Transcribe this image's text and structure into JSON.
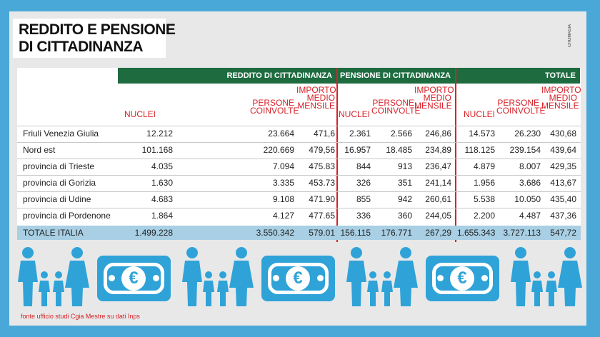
{
  "title": "REDDITO E PENSIONE\nDI CITTADINANZA",
  "credit": "CROMASIA",
  "groups": {
    "reddito": "REDDITO DI CITTADINANZA",
    "pensione": "PENSIONE DI CITTADINANZA",
    "totale": "TOTALE"
  },
  "headers": {
    "nuclei": "NUCLEI",
    "persone": "PERSONE\nCOINVOLTE",
    "importo": "IMPORTO\nMEDIO\nMENSILE"
  },
  "rows": [
    {
      "name": "Friuli Venezia Giulia",
      "r_nuclei": "12.212",
      "r_persone": "23.664",
      "r_importo": "471,6",
      "p_nuclei": "2.361",
      "p_persone": "2.566",
      "p_importo": "246,86",
      "t_nuclei": "14.573",
      "t_persone": "26.230",
      "t_importo": "430,68"
    },
    {
      "name": "Nord est",
      "r_nuclei": "101.168",
      "r_persone": "220.669",
      "r_importo": "479,56",
      "p_nuclei": "16.957",
      "p_persone": "18.485",
      "p_importo": "234,89",
      "t_nuclei": "118.125",
      "t_persone": "239.154",
      "t_importo": "439,64"
    },
    {
      "name": "provincia di Trieste",
      "r_nuclei": "4.035",
      "r_persone": "7.094",
      "r_importo": "475.83",
      "p_nuclei": "844",
      "p_persone": "913",
      "p_importo": "236,47",
      "t_nuclei": "4.879",
      "t_persone": "8.007",
      "t_importo": "429,35"
    },
    {
      "name": "provincia di Gorizia",
      "r_nuclei": "1.630",
      "r_persone": "3.335",
      "r_importo": "453.73",
      "p_nuclei": "326",
      "p_persone": "351",
      "p_importo": "241,14",
      "t_nuclei": "1.956",
      "t_persone": "3.686",
      "t_importo": "413,67"
    },
    {
      "name": "provincia di Udine",
      "r_nuclei": "4.683",
      "r_persone": "9.108",
      "r_importo": "471.90",
      "p_nuclei": "855",
      "p_persone": "942",
      "p_importo": "260,61",
      "t_nuclei": "5.538",
      "t_persone": "10.050",
      "t_importo": "435,40"
    },
    {
      "name": "provincia di Pordenone",
      "r_nuclei": "1.864",
      "r_persone": "4.127",
      "r_importo": "477.65",
      "p_nuclei": "336",
      "p_persone": "360",
      "p_importo": "244,05",
      "t_nuclei": "2.200",
      "t_persone": "4.487",
      "t_importo": "437,36"
    }
  ],
  "total": {
    "name": "TOTALE ITALIA",
    "r_nuclei": "1.499.228",
    "r_persone": "3.550.342",
    "r_importo": "579.01",
    "p_nuclei": "156.115",
    "p_persone": "176.771",
    "p_importo": "267,29",
    "t_nuclei": "1.655.343",
    "t_persone": "3.727.113",
    "t_importo": "547,72"
  },
  "euro_symbol": "€",
  "source": "fonte ufficio studi Cgia Mestre su dati Inps",
  "colors": {
    "green": "#1d6b3f",
    "red": "#d72229",
    "blue": "#2fa3d8",
    "total_row": "#a8cfe4"
  }
}
